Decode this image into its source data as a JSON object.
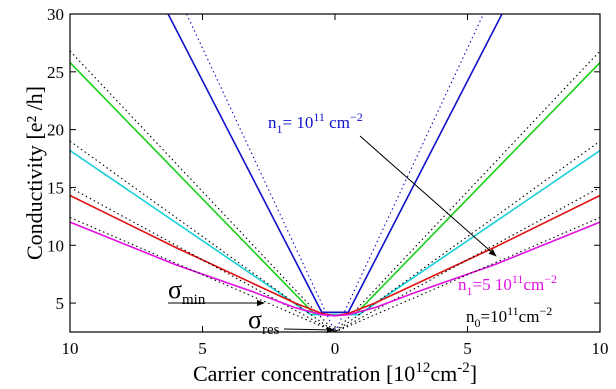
{
  "chart_data": {
    "type": "line",
    "xlabel": "Carrier concentration [10",
    "xlabel_sup": "12",
    "xlabel_unit": "cm",
    "xlabel_unit_sup": "-2",
    "xlabel_close": "]",
    "ylabel": "Conductivity [e² /h]",
    "xlim": [
      -10,
      10
    ],
    "ylim": [
      2.5,
      30
    ],
    "x_ticks": [
      {
        "value": -10,
        "label": "10"
      },
      {
        "value": -5,
        "label": "5"
      },
      {
        "value": 0,
        "label": "0"
      },
      {
        "value": 5,
        "label": "5"
      },
      {
        "value": 10,
        "label": "10"
      }
    ],
    "y_ticks": [
      {
        "value": 5,
        "label": "5"
      },
      {
        "value": 10,
        "label": "10"
      },
      {
        "value": 15,
        "label": "15"
      },
      {
        "value": 20,
        "label": "20"
      },
      {
        "value": 25,
        "label": "25"
      },
      {
        "value": 30,
        "label": "30"
      }
    ],
    "series": [
      {
        "color": "#1010c8",
        "style": "solid",
        "x": [
          -6.3,
          -0.5,
          0.5,
          6.3
        ],
        "y": [
          30,
          4.2,
          4.2,
          30
        ]
      },
      {
        "color": "#1010c8",
        "style": "dotted",
        "x": [
          -5.6,
          0,
          5.6
        ],
        "y": [
          30,
          2.5,
          30
        ]
      },
      {
        "color": "#18d018",
        "style": "solid",
        "x": [
          -10,
          -0.75,
          0.75,
          10
        ],
        "y": [
          25.8,
          4.0,
          4.0,
          25.8
        ]
      },
      {
        "color": "#000000",
        "style": "dotted",
        "x": [
          -10,
          0,
          10
        ],
        "y": [
          26.8,
          2.5,
          26.8
        ]
      },
      {
        "color": "#18d0d8",
        "style": "solid",
        "x": [
          -10,
          -0.9,
          0.9,
          10
        ],
        "y": [
          18.2,
          4.0,
          4.0,
          18.2
        ]
      },
      {
        "color": "#000000",
        "style": "dotted",
        "x": [
          -10,
          0,
          10
        ],
        "y": [
          19.0,
          2.5,
          19.0
        ]
      },
      {
        "color": "#e01010",
        "style": "solid",
        "x": [
          -10,
          -6,
          -3,
          -1.5,
          -0.5,
          0,
          0.5,
          1.5,
          3,
          6,
          10
        ],
        "y": [
          14.3,
          9.8,
          6.6,
          5.0,
          4.1,
          3.9,
          4.1,
          5.0,
          6.6,
          9.8,
          14.3
        ]
      },
      {
        "color": "#000000",
        "style": "dotted",
        "x": [
          -10,
          0,
          10
        ],
        "y": [
          15.0,
          2.5,
          15.0
        ]
      },
      {
        "color": "#e010e0",
        "style": "solid",
        "x": [
          -10,
          -6,
          -3,
          -1.5,
          -0.5,
          0,
          0.5,
          1.5,
          3,
          6,
          10
        ],
        "y": [
          12.0,
          8.3,
          5.9,
          4.6,
          4.0,
          3.9,
          4.0,
          4.6,
          5.9,
          8.3,
          12.0
        ]
      },
      {
        "color": "#000000",
        "style": "dotted",
        "x": [
          -10,
          0,
          10
        ],
        "y": [
          12.4,
          2.5,
          12.4
        ]
      }
    ],
    "annotations": {
      "n1_blue": {
        "pre": "n",
        "sub": "1",
        "mid": "= 10",
        "sup": "11",
        "post": " cm",
        "post_sup": "−2",
        "color": "#1010c8"
      },
      "n1_magenta": {
        "pre": "n",
        "sub": "1",
        "mid": "=5 10",
        "sup": "11",
        "post": "cm",
        "post_sup": "−2",
        "color": "#e010e0"
      },
      "n0": {
        "pre": "n",
        "sub": "0",
        "mid": "=10",
        "sup": "11",
        "post": "cm",
        "post_sup": "−2",
        "color": "#000000"
      },
      "sigma_min": {
        "symbol": "σ",
        "sub": "min"
      },
      "sigma_res": {
        "symbol": "σ",
        "sub": "res"
      }
    }
  }
}
